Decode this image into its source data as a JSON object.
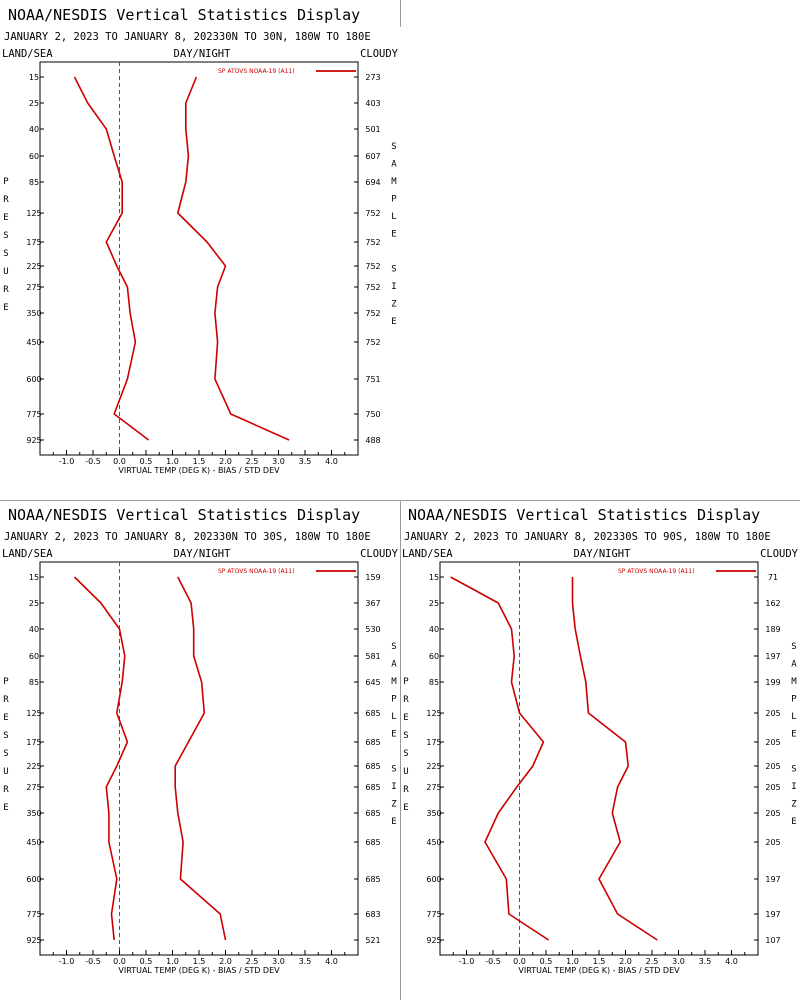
{
  "chart_data": [
    {
      "type": "line",
      "title": "NOAA/NESDIS Vertical Statistics Display",
      "subtitle": "JANUARY 2, 2023 TO JANUARY 8, 202330N TO 30N, 180W TO 180E",
      "header_left": "LAND/SEA",
      "header_center": "DAY/NIGHT",
      "header_right": "CLOUDY",
      "legend": "SP ATOVS NOAA-19 (A11)",
      "xlabel": "VIRTUAL TEMP (DEG K) - BIAS / STD DEV",
      "ylabel": "PRESSURE",
      "y2label": "SAMPLE SIZE",
      "xlim": [
        -1.5,
        4.5
      ],
      "xticks": [
        "-1.0",
        "-0.5",
        "0.0",
        "0.5",
        "1.0",
        "1.5",
        "2.0",
        "2.5",
        "3.0",
        "3.5",
        "4.0"
      ],
      "pressure_levels": [
        "15",
        "25",
        "40",
        "60",
        "85",
        "125",
        "175",
        "225",
        "275",
        "350",
        "450",
        "600",
        "775",
        "925"
      ],
      "sample_size": [
        "273",
        "403",
        "501",
        "607",
        "694",
        "752",
        "752",
        "752",
        "752",
        "752",
        "752",
        "751",
        "750",
        "488"
      ],
      "series": [
        {
          "values": [
            -0.85,
            -0.6,
            -0.25,
            -0.1,
            0.05,
            0.05,
            -0.25,
            -0.05,
            0.15,
            0.2,
            0.3,
            0.15,
            -0.1,
            0.55
          ]
        },
        {
          "values": [
            1.45,
            1.25,
            1.25,
            1.3,
            1.25,
            1.1,
            1.65,
            2.0,
            1.85,
            1.8,
            1.85,
            1.8,
            2.1,
            3.2
          ]
        }
      ],
      "color": "#cc0000"
    },
    {
      "type": "line",
      "title": "NOAA/NESDIS Vertical Statistics Display",
      "subtitle": "JANUARY 2, 2023 TO JANUARY 8, 202330N TO 30S, 180W TO 180E",
      "header_left": "LAND/SEA",
      "header_center": "DAY/NIGHT",
      "header_right": "CLOUDY",
      "legend": "SP ATOVS NOAA-19 (A11)",
      "xlabel": "VIRTUAL TEMP (DEG K) - BIAS / STD DEV",
      "ylabel": "PRESSURE",
      "y2label": "SAMPLE SIZE",
      "xlim": [
        -1.5,
        4.5
      ],
      "xticks": [
        "-1.0",
        "-0.5",
        "0.0",
        "0.5",
        "1.0",
        "1.5",
        "2.0",
        "2.5",
        "3.0",
        "3.5",
        "4.0"
      ],
      "pressure_levels": [
        "15",
        "25",
        "40",
        "60",
        "85",
        "125",
        "175",
        "225",
        "275",
        "350",
        "450",
        "600",
        "775",
        "925"
      ],
      "sample_size": [
        "159",
        "367",
        "530",
        "581",
        "645",
        "685",
        "685",
        "685",
        "685",
        "685",
        "685",
        "685",
        "683",
        "521"
      ],
      "series": [
        {
          "values": [
            -0.85,
            -0.35,
            0.0,
            0.1,
            0.05,
            -0.05,
            0.15,
            -0.05,
            -0.25,
            -0.2,
            -0.2,
            -0.05,
            -0.15,
            -0.1
          ]
        },
        {
          "values": [
            1.1,
            1.35,
            1.4,
            1.4,
            1.55,
            1.6,
            1.3,
            1.05,
            1.05,
            1.1,
            1.2,
            1.15,
            1.9,
            2.0
          ]
        }
      ],
      "color": "#cc0000"
    },
    {
      "type": "line",
      "title": "NOAA/NESDIS Vertical Statistics Display",
      "subtitle": "JANUARY 2, 2023 TO JANUARY 8, 202330S TO 90S, 180W TO 180E",
      "header_left": "LAND/SEA",
      "header_center": "DAY/NIGHT",
      "header_right": "CLOUDY",
      "legend": "SP ATOVS NOAA-19 (A11)",
      "xlabel": "VIRTUAL TEMP (DEG K) - BIAS / STD DEV",
      "ylabel": "PRESSURE",
      "y2label": "SAMPLE SIZE",
      "xlim": [
        -1.5,
        4.5
      ],
      "xticks": [
        "-1.0",
        "-0.5",
        "0.0",
        "0.5",
        "1.0",
        "1.5",
        "2.0",
        "2.5",
        "3.0",
        "3.5",
        "4.0"
      ],
      "pressure_levels": [
        "15",
        "25",
        "40",
        "60",
        "85",
        "125",
        "175",
        "225",
        "275",
        "350",
        "450",
        "600",
        "775",
        "925"
      ],
      "sample_size": [
        "71",
        "162",
        "189",
        "197",
        "199",
        "205",
        "205",
        "205",
        "205",
        "205",
        "205",
        "197",
        "197",
        "107"
      ],
      "series": [
        {
          "values": [
            -1.3,
            -0.4,
            -0.15,
            -0.1,
            -0.15,
            0.0,
            0.45,
            0.25,
            -0.05,
            -0.4,
            -0.65,
            -0.25,
            -0.2,
            0.55
          ]
        },
        {
          "values": [
            1.0,
            1.0,
            1.05,
            1.15,
            1.25,
            1.3,
            2.0,
            2.05,
            1.85,
            1.75,
            1.9,
            1.5,
            1.85,
            2.6
          ]
        }
      ],
      "color": "#cc0000"
    }
  ]
}
